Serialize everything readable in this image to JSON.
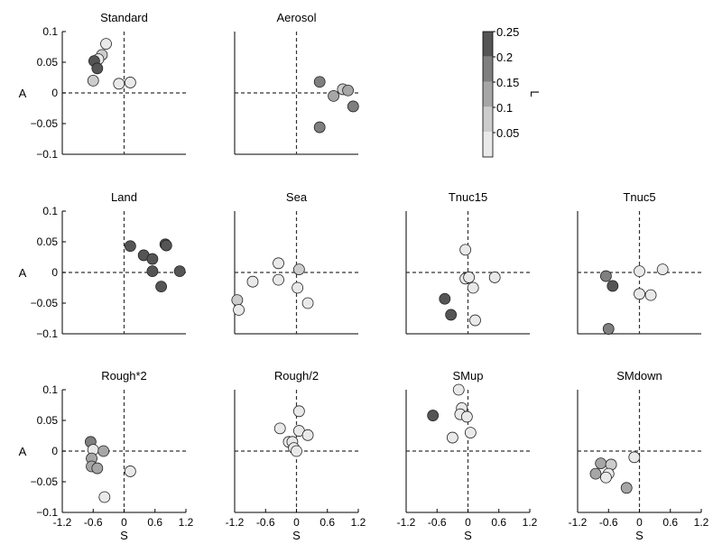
{
  "chart_data": {
    "type": "scatter",
    "xlabel": "S",
    "ylabel": "A",
    "xlim": [
      -1.2,
      1.2
    ],
    "ylim": [
      -0.1,
      0.1
    ],
    "xticks": [
      "-1.2",
      "-0.6",
      "0",
      "0.6",
      "1.2"
    ],
    "yticks": [
      "0.1",
      "0.05",
      "0",
      "−0.05",
      "−0.1"
    ],
    "grid": false,
    "reference_lines": "dashed lines at S = 0 and A = 0",
    "colorbar": {
      "label": "L",
      "ticks": [
        "0.25",
        "0.2",
        "0.15",
        "0.1",
        "0.05"
      ],
      "levels": [
        0.25,
        0.2,
        0.15,
        0.1,
        0.05
      ],
      "colors": [
        "#555555",
        "#7f7f7f",
        "#a6a6a6",
        "#cccccc",
        "#e9e9e9"
      ]
    },
    "panels": [
      {
        "title": "Standard",
        "show_xticks": false,
        "show_yticks": true,
        "points": [
          [
            -0.35,
            0.08,
            0.05
          ],
          [
            -0.43,
            0.062,
            0.08
          ],
          [
            -0.5,
            0.055,
            0.05
          ],
          [
            -0.58,
            0.052,
            0.25
          ],
          [
            -0.52,
            0.04,
            0.25
          ],
          [
            -0.6,
            0.02,
            0.08
          ],
          [
            -0.1,
            0.015,
            0.05
          ],
          [
            0.12,
            0.017,
            0.05
          ]
        ]
      },
      {
        "title": "Aerosol",
        "show_xticks": false,
        "show_yticks": false,
        "points": [
          [
            0.45,
            0.018,
            0.18
          ],
          [
            0.72,
            -0.005,
            0.15
          ],
          [
            0.9,
            0.006,
            0.08
          ],
          [
            1.0,
            0.004,
            0.15
          ],
          [
            1.1,
            -0.022,
            0.18
          ],
          [
            0.45,
            -0.056,
            0.18
          ]
        ]
      },
      {
        "title": "Land",
        "show_xticks": false,
        "show_yticks": true,
        "points": [
          [
            0.12,
            0.043,
            0.25
          ],
          [
            0.38,
            0.028,
            0.25
          ],
          [
            0.55,
            0.022,
            0.25
          ],
          [
            0.55,
            0.002,
            0.25
          ],
          [
            0.8,
            0.046,
            0.25
          ],
          [
            0.82,
            0.044,
            0.25
          ],
          [
            1.08,
            0.002,
            0.25
          ],
          [
            0.72,
            -0.023,
            0.25
          ]
        ]
      },
      {
        "title": "Sea",
        "show_xticks": false,
        "show_yticks": false,
        "points": [
          [
            -1.15,
            -0.045,
            0.08
          ],
          [
            -1.12,
            -0.061,
            0.05
          ],
          [
            -0.85,
            -0.015,
            0.05
          ],
          [
            -0.35,
            0.015,
            0.05
          ],
          [
            -0.35,
            -0.012,
            0.05
          ],
          [
            0.05,
            0.005,
            0.08
          ],
          [
            0.02,
            -0.025,
            0.05
          ],
          [
            0.22,
            -0.05,
            0.05
          ]
        ]
      },
      {
        "title": "Tnuc15",
        "show_xticks": false,
        "show_yticks": false,
        "points": [
          [
            -0.05,
            0.037,
            0.05
          ],
          [
            -0.05,
            -0.01,
            0.05
          ],
          [
            0.02,
            -0.008,
            0.05
          ],
          [
            0.1,
            -0.025,
            0.05
          ],
          [
            0.52,
            -0.008,
            0.05
          ],
          [
            0.14,
            -0.078,
            0.05
          ],
          [
            -0.45,
            -0.043,
            0.25
          ],
          [
            -0.33,
            -0.069,
            0.25
          ]
        ]
      },
      {
        "title": "Tnuc5",
        "show_xticks": false,
        "show_yticks": false,
        "points": [
          [
            -0.65,
            -0.006,
            0.18
          ],
          [
            -0.52,
            -0.022,
            0.25
          ],
          [
            -0.6,
            -0.092,
            0.18
          ],
          [
            0.0,
            0.002,
            0.05
          ],
          [
            0.0,
            -0.035,
            0.05
          ],
          [
            0.22,
            -0.037,
            0.05
          ],
          [
            0.45,
            0.005,
            0.05
          ]
        ]
      },
      {
        "title": "Rough*2",
        "show_xticks": true,
        "show_yticks": true,
        "points": [
          [
            -0.65,
            0.015,
            0.18
          ],
          [
            -0.6,
            0.002,
            0.05
          ],
          [
            -0.4,
            0.0,
            0.15
          ],
          [
            -0.63,
            -0.012,
            0.15
          ],
          [
            -0.63,
            -0.025,
            0.15
          ],
          [
            -0.52,
            -0.028,
            0.15
          ],
          [
            0.12,
            -0.033,
            0.05
          ],
          [
            -0.38,
            -0.075,
            0.05
          ]
        ]
      },
      {
        "title": "Rough/2",
        "show_xticks": true,
        "show_yticks": false,
        "points": [
          [
            0.05,
            0.065,
            0.05
          ],
          [
            -0.32,
            0.037,
            0.05
          ],
          [
            0.05,
            0.033,
            0.05
          ],
          [
            0.22,
            0.026,
            0.05
          ],
          [
            -0.15,
            0.015,
            0.05
          ],
          [
            -0.08,
            0.015,
            0.05
          ],
          [
            -0.05,
            0.005,
            0.05
          ],
          [
            0.0,
            0.0,
            0.05
          ]
        ]
      },
      {
        "title": "SMup",
        "show_xticks": true,
        "show_yticks": false,
        "points": [
          [
            -0.18,
            0.1,
            0.05
          ],
          [
            -0.12,
            0.07,
            0.05
          ],
          [
            -0.15,
            0.06,
            0.05
          ],
          [
            -0.02,
            0.056,
            0.05
          ],
          [
            -0.68,
            0.058,
            0.25
          ],
          [
            -0.3,
            0.022,
            0.05
          ],
          [
            0.05,
            0.03,
            0.05
          ]
        ]
      },
      {
        "title": "SMdown",
        "show_xticks": true,
        "show_yticks": false,
        "points": [
          [
            -0.75,
            -0.02,
            0.15
          ],
          [
            -0.85,
            -0.037,
            0.15
          ],
          [
            -0.55,
            -0.022,
            0.08
          ],
          [
            -0.6,
            -0.037,
            0.05
          ],
          [
            -0.65,
            -0.043,
            0.05
          ],
          [
            -0.1,
            -0.01,
            0.05
          ],
          [
            -0.25,
            -0.06,
            0.15
          ]
        ]
      }
    ]
  }
}
